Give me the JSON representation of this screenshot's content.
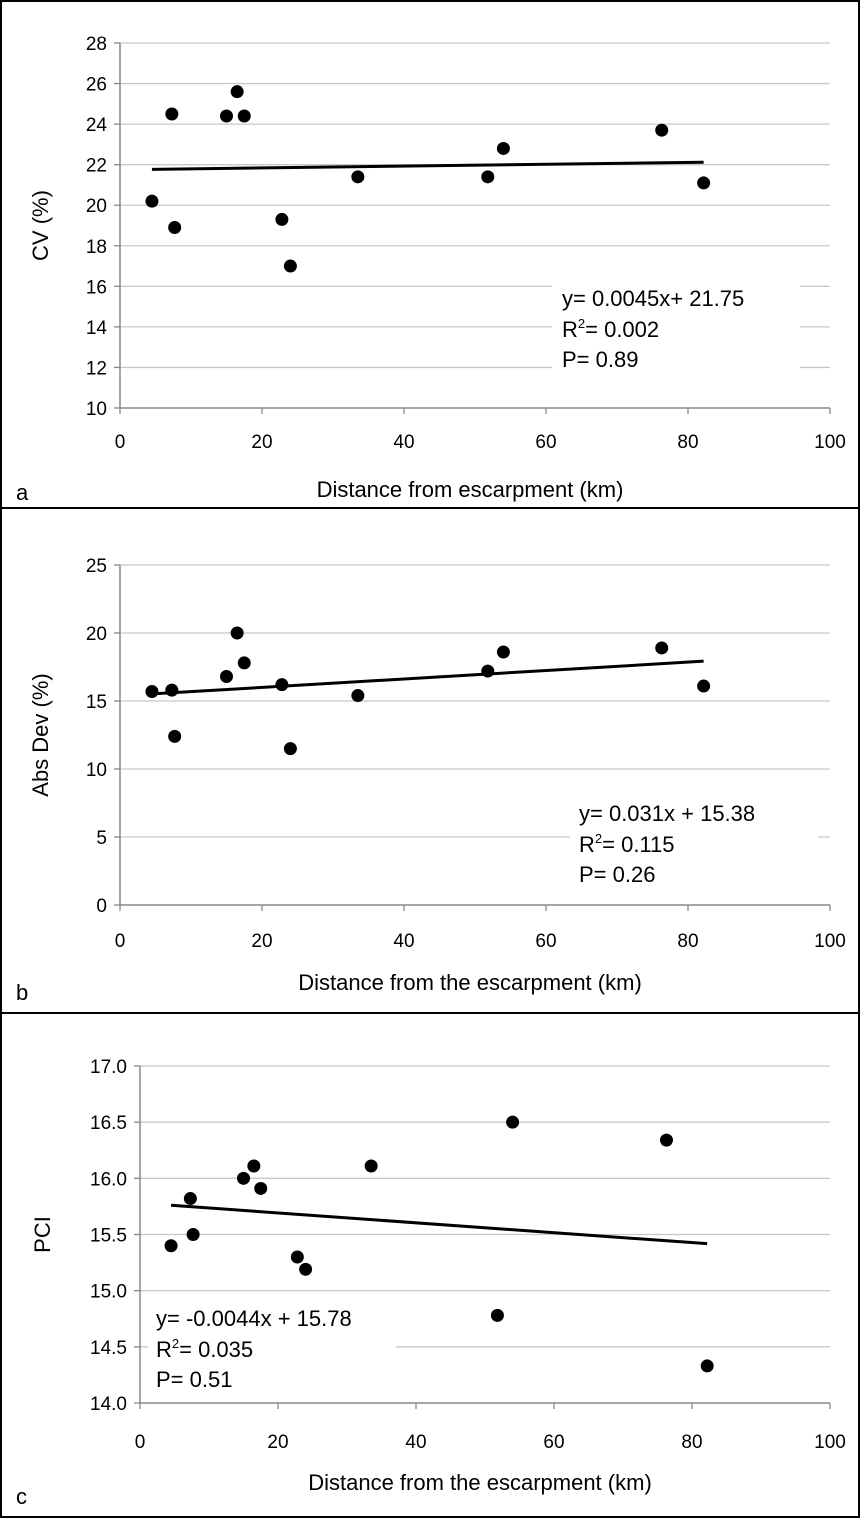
{
  "chart_data": [
    {
      "type": "scatter",
      "panel_label": "a",
      "xlabel": "Distance from escarpment (km)",
      "ylabel": "CV (%)",
      "xlim": [
        0,
        100
      ],
      "ylim": [
        10,
        28
      ],
      "xticks": [
        0,
        20,
        40,
        60,
        80,
        100
      ],
      "yticks": [
        10,
        12,
        14,
        16,
        18,
        20,
        22,
        24,
        26,
        28
      ],
      "y_decimals": 0,
      "grid": "horizontal",
      "points": [
        {
          "x": 4.5,
          "y": 20.2
        },
        {
          "x": 7.3,
          "y": 24.5
        },
        {
          "x": 7.7,
          "y": 18.9
        },
        {
          "x": 15.0,
          "y": 24.4
        },
        {
          "x": 16.5,
          "y": 25.6
        },
        {
          "x": 17.5,
          "y": 24.4
        },
        {
          "x": 22.8,
          "y": 19.3
        },
        {
          "x": 24.0,
          "y": 17.0
        },
        {
          "x": 33.5,
          "y": 21.4
        },
        {
          "x": 51.8,
          "y": 21.4
        },
        {
          "x": 54.0,
          "y": 22.8
        },
        {
          "x": 76.3,
          "y": 23.7
        },
        {
          "x": 82.2,
          "y": 21.1
        }
      ],
      "trendline": {
        "slope": 0.0045,
        "intercept": 21.75,
        "x_range": [
          4.5,
          82.2
        ]
      },
      "annotation": {
        "equation": "y= 0.0045x+ 21.75",
        "r2_prefix": "R",
        "r2_sup": "2",
        "r2_value": "= 0.002",
        "p": "P= 0.89"
      }
    },
    {
      "type": "scatter",
      "panel_label": "b",
      "xlabel": "Distance from the escarpment (km)",
      "ylabel": "Abs Dev (%)",
      "xlim": [
        0,
        100
      ],
      "ylim": [
        0,
        25
      ],
      "xticks": [
        0,
        20,
        40,
        60,
        80,
        100
      ],
      "yticks": [
        0,
        5,
        10,
        15,
        20,
        25
      ],
      "y_decimals": 0,
      "grid": "horizontal",
      "points": [
        {
          "x": 4.5,
          "y": 15.7
        },
        {
          "x": 7.3,
          "y": 15.8
        },
        {
          "x": 7.7,
          "y": 12.4
        },
        {
          "x": 15.0,
          "y": 16.8
        },
        {
          "x": 16.5,
          "y": 20.0
        },
        {
          "x": 17.5,
          "y": 17.8
        },
        {
          "x": 22.8,
          "y": 16.2
        },
        {
          "x": 24.0,
          "y": 11.5
        },
        {
          "x": 33.5,
          "y": 15.4
        },
        {
          "x": 51.8,
          "y": 17.2
        },
        {
          "x": 54.0,
          "y": 18.6
        },
        {
          "x": 76.3,
          "y": 18.9
        },
        {
          "x": 82.2,
          "y": 16.1
        }
      ],
      "trendline": {
        "slope": 0.031,
        "intercept": 15.38,
        "x_range": [
          4.5,
          82.2
        ]
      },
      "annotation": {
        "equation": "y= 0.031x + 15.38",
        "r2_prefix": "R",
        "r2_sup": "2",
        "r2_value": "= 0.115",
        "p": "P= 0.26"
      }
    },
    {
      "type": "scatter",
      "panel_label": "c",
      "xlabel": "Distance from the escarpment (km)",
      "ylabel": "PCI",
      "xlim": [
        0,
        100
      ],
      "ylim": [
        14.0,
        17.0
      ],
      "xticks": [
        0,
        20,
        40,
        60,
        80,
        100
      ],
      "yticks": [
        14.0,
        14.5,
        15.0,
        15.5,
        16.0,
        16.5,
        17.0
      ],
      "y_decimals": 1,
      "grid": "horizontal",
      "points": [
        {
          "x": 4.5,
          "y": 15.4
        },
        {
          "x": 7.3,
          "y": 15.82
        },
        {
          "x": 7.7,
          "y": 15.5
        },
        {
          "x": 15.0,
          "y": 16.0
        },
        {
          "x": 16.5,
          "y": 16.11
        },
        {
          "x": 17.5,
          "y": 15.91
        },
        {
          "x": 22.8,
          "y": 15.3
        },
        {
          "x": 24.0,
          "y": 15.19
        },
        {
          "x": 33.5,
          "y": 16.11
        },
        {
          "x": 51.8,
          "y": 14.78
        },
        {
          "x": 54.0,
          "y": 16.5
        },
        {
          "x": 76.3,
          "y": 16.34
        },
        {
          "x": 82.2,
          "y": 14.33
        }
      ],
      "trendline": {
        "slope": -0.0044,
        "intercept": 15.78,
        "x_range": [
          4.5,
          82.2
        ]
      },
      "annotation": {
        "equation": "y= -0.0044x + 15.78",
        "r2_prefix": "R",
        "r2_sup": "2",
        "r2_value": "= 0.035",
        "p": "P= 0.51"
      }
    }
  ]
}
